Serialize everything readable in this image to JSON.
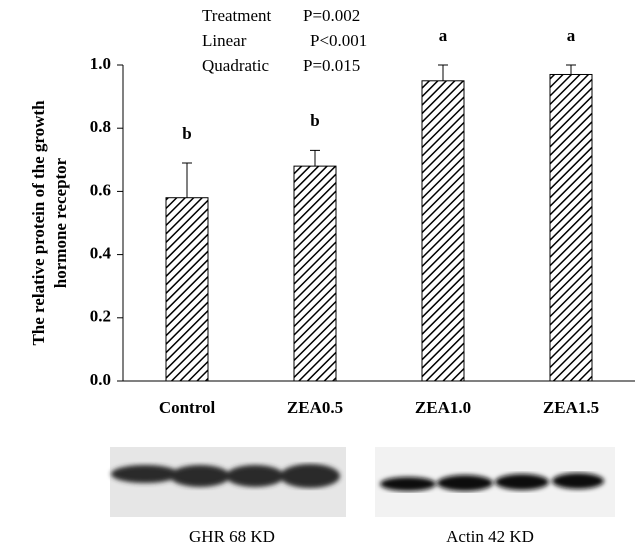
{
  "chart_data": {
    "type": "bar",
    "y_label": [
      "The relative protein of the growth",
      "hormone receptor"
    ],
    "categories": [
      "Control",
      "ZEA0.5",
      "ZEA1.0",
      "ZEA1.5"
    ],
    "values": [
      0.58,
      0.68,
      0.95,
      0.97
    ],
    "errors": [
      0.11,
      0.05,
      0.05,
      0.03
    ],
    "significance": [
      "b",
      "b",
      "a",
      "a"
    ],
    "color": "#000000",
    "ylim": [
      0,
      1.0
    ],
    "yticks": [
      {
        "value": 0,
        "label": "0.0"
      },
      0.2,
      0.4,
      0.6,
      0.8,
      {
        "value": 1.0,
        "label": "1.0"
      }
    ],
    "stats": [
      {
        "label": "Treatment",
        "p": "P=0.002"
      },
      {
        "label": "Linear",
        "p": "P<0.001"
      },
      {
        "label": "Quadratic",
        "p": "P=0.015"
      }
    ],
    "blots": [
      "GHR  68 KD",
      "Actin  42 KD"
    ]
  }
}
